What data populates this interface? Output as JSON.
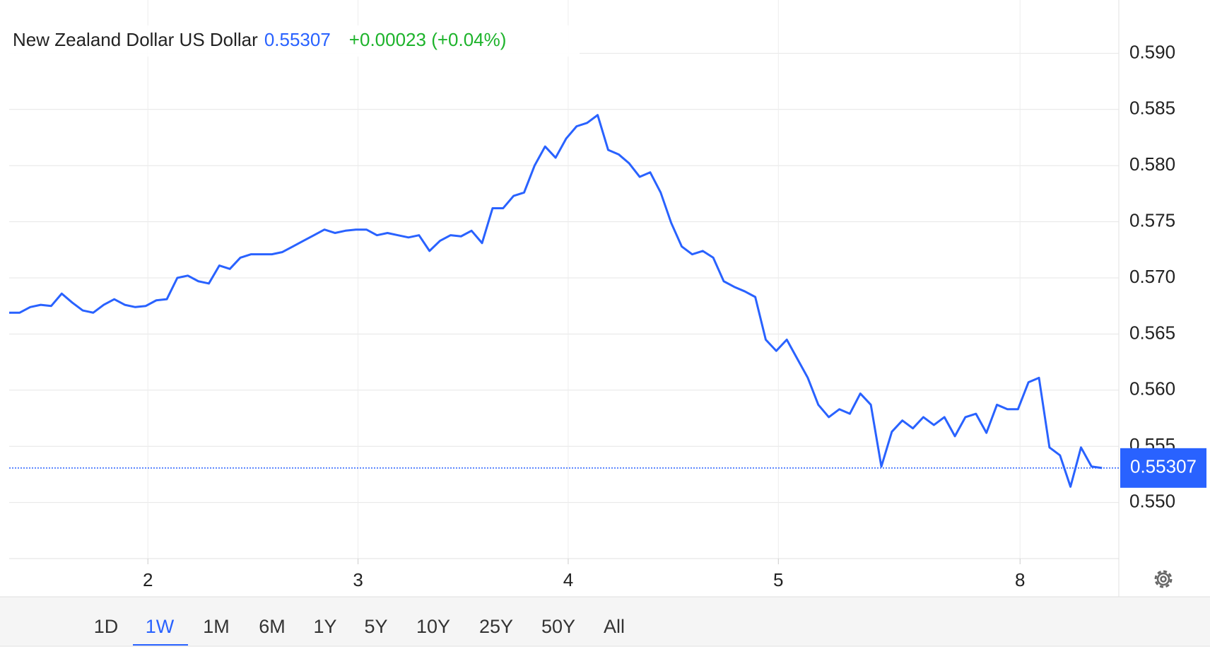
{
  "chart_data": {
    "type": "line",
    "title": "New Zealand Dollar US Dollar",
    "price": 0.55307,
    "change": "+0.00023 (+0.04%)",
    "ranges": [
      "1D",
      "1W",
      "1M",
      "6M",
      "1Y",
      "5Y",
      "10Y",
      "25Y",
      "50Y",
      "All"
    ],
    "active_range": 1,
    "grid": true,
    "xlim": [
      0.34,
      5.62
    ],
    "xticks": [
      {
        "value": 1,
        "label": "2"
      },
      {
        "value": 2,
        "label": "3"
      },
      {
        "value": 3,
        "label": "4"
      },
      {
        "value": 4,
        "label": "5"
      },
      {
        "value": 5.15,
        "label": "8"
      }
    ],
    "ylim": [
      0.545,
      0.595
    ],
    "yticks": [
      {
        "value": 0.55,
        "label": "0.550"
      },
      {
        "value": 0.555,
        "label": "0.555"
      },
      {
        "value": 0.56,
        "label": "0.560"
      },
      {
        "value": 0.565,
        "label": "0.565"
      },
      {
        "value": 0.57,
        "label": "0.570"
      },
      {
        "value": 0.575,
        "label": "0.575"
      },
      {
        "value": 0.58,
        "label": "0.580"
      },
      {
        "value": 0.585,
        "label": "0.585"
      },
      {
        "value": 0.59,
        "label": "0.590"
      }
    ],
    "x": [
      0.34,
      0.39,
      0.44,
      0.49,
      0.54,
      0.59,
      0.64,
      0.69,
      0.74,
      0.79,
      0.84,
      0.89,
      0.94,
      0.99,
      1.04,
      1.09,
      1.14,
      1.19,
      1.24,
      1.29,
      1.34,
      1.39,
      1.44,
      1.49,
      1.54,
      1.59,
      1.64,
      1.69,
      1.74,
      1.79,
      1.84,
      1.89,
      1.94,
      1.99,
      2.04,
      2.09,
      2.14,
      2.19,
      2.24,
      2.29,
      2.34,
      2.39,
      2.44,
      2.49,
      2.54,
      2.59,
      2.64,
      2.69,
      2.74,
      2.79,
      2.84,
      2.89,
      2.94,
      2.99,
      3.04,
      3.09,
      3.14,
      3.19,
      3.24,
      3.29,
      3.34,
      3.39,
      3.44,
      3.49,
      3.54,
      3.59,
      3.64,
      3.69,
      3.74,
      3.79,
      3.84,
      3.89,
      3.94,
      3.99,
      4.04,
      4.09,
      4.14,
      4.19,
      4.24,
      4.29,
      4.34,
      4.39,
      4.44,
      4.49,
      4.54,
      4.59,
      4.64,
      4.69,
      4.74,
      4.79,
      4.84,
      4.89,
      4.94,
      4.99,
      5.04,
      5.09,
      5.14,
      5.19,
      5.24,
      5.29,
      5.34,
      5.39,
      5.44,
      5.49,
      5.54
    ],
    "series": [
      {
        "name": "New Zealand Dollar US Dollar",
        "color": "#2962ff",
        "values": [
          0.5669,
          0.5669,
          0.5674,
          0.5676,
          0.5675,
          0.5686,
          0.5678,
          0.5671,
          0.5669,
          0.5676,
          0.5681,
          0.5676,
          0.5674,
          0.5675,
          0.568,
          0.5681,
          0.57,
          0.5702,
          0.5697,
          0.5695,
          0.5711,
          0.5708,
          0.5718,
          0.5721,
          0.5721,
          0.5721,
          0.5723,
          0.5728,
          0.5733,
          0.5738,
          0.5743,
          0.574,
          0.5742,
          0.5743,
          0.5743,
          0.5738,
          0.574,
          0.5738,
          0.5736,
          0.5738,
          0.5724,
          0.5733,
          0.5738,
          0.5737,
          0.5742,
          0.5731,
          0.5762,
          0.5762,
          0.5773,
          0.5776,
          0.58,
          0.5817,
          0.5807,
          0.5824,
          0.5835,
          0.5838,
          0.5845,
          0.5814,
          0.581,
          0.5802,
          0.579,
          0.5794,
          0.5776,
          0.5749,
          0.5728,
          0.5721,
          0.5724,
          0.5718,
          0.5697,
          0.5692,
          0.5688,
          0.5683,
          0.5645,
          0.5635,
          0.5645,
          0.5628,
          0.5611,
          0.5587,
          0.5576,
          0.5583,
          0.5579,
          0.5597,
          0.5587,
          0.5532,
          0.5563,
          0.5573,
          0.5566,
          0.5576,
          0.5569,
          0.5576,
          0.5559,
          0.5576,
          0.5579,
          0.5562,
          0.5587,
          0.5583,
          0.5583,
          0.5607,
          0.5611,
          0.5549,
          0.5542,
          0.5514,
          0.5549,
          0.5532,
          0.55307
        ]
      }
    ]
  }
}
